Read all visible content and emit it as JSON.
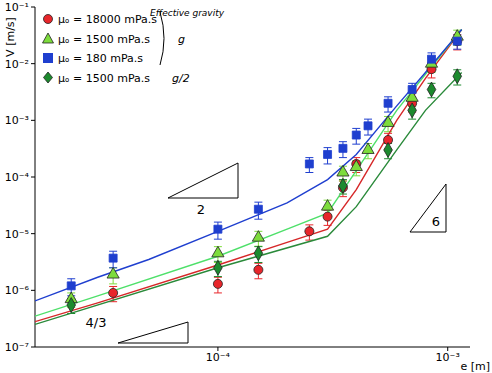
{
  "chart_data": {
    "type": "scatter",
    "x_label": "e [m]",
    "y_label": "V [m/s]",
    "log": true,
    "legend": "upper left",
    "legend_title": "Effective gravity",
    "slope_labels": [
      "2",
      "6",
      "4/3"
    ],
    "xlim": [
      1.6e-05,
      0.00125
    ],
    "xticks": [
      {
        "value": 0.0001,
        "label": "10⁻⁴"
      },
      {
        "value": 0.001,
        "label": "10⁻³"
      }
    ],
    "ylim": [
      1e-07,
      0.1
    ],
    "yticks": [
      {
        "value": 1e-07,
        "label": "10⁻⁷"
      },
      {
        "value": 1e-06,
        "label": "10⁻⁶"
      },
      {
        "value": 1e-05,
        "label": "10⁻⁵"
      },
      {
        "value": 0.0001,
        "label": "10⁻⁴"
      },
      {
        "value": 0.001,
        "label": "10⁻³"
      },
      {
        "value": 0.01,
        "label": "10⁻²"
      },
      {
        "value": 0.1,
        "label": "10⁻¹"
      }
    ],
    "x": [
      2.3e-05,
      3.5e-05,
      0.0001,
      0.00015,
      0.00025,
      0.0003,
      0.00035,
      0.0004,
      0.00045,
      0.00055,
      0.0007,
      0.00085,
      0.0011
    ],
    "series": [
      {
        "name": "μₒ = 18000 mPa.s",
        "gravity": "g",
        "color": "#e8262b",
        "marker": "circle",
        "values": [
          null,
          9e-07,
          1.3e-06,
          2.3e-06,
          1.1e-05,
          2e-05,
          6.5e-05,
          0.00017,
          null,
          0.00045,
          0.002,
          0.008,
          0.025
        ],
        "errors": [
          null,
          2.7e-07,
          4e-07,
          7e-07,
          3.3e-06,
          6e-06,
          2e-05,
          5e-05,
          null,
          0.00014,
          0.0006,
          0.0024,
          0.0075
        ],
        "fit": {
          "color": "#d62728",
          "x": [
            1.6e-05,
            3e-05,
            0.0001,
            0.0002,
            0.0003,
            0.0004,
            0.0006,
            0.0008,
            0.00115
          ],
          "values": [
            2.8e-07,
            6e-07,
            2.8e-06,
            7e-06,
            1.2e-05,
            6e-05,
            0.001,
            0.0055,
            0.04
          ]
        }
      },
      {
        "name": "μₒ = 1500 mPa.s",
        "gravity": "g",
        "color": "#7ddc3c",
        "marker": "triangle",
        "values": [
          7e-07,
          1.9e-06,
          4.5e-06,
          8.5e-06,
          null,
          3e-05,
          0.00012,
          0.00015,
          0.0003,
          0.0009,
          0.0025,
          0.01,
          0.03
        ],
        "errors": [
          2e-07,
          6e-07,
          1.4e-06,
          2.5e-06,
          null,
          9e-06,
          3.5e-05,
          4.5e-05,
          9e-05,
          0.00027,
          0.00075,
          0.003,
          0.009
        ],
        "fit": {
          "color": "#4ee06a",
          "x": [
            1.6e-05,
            3e-05,
            0.0001,
            0.0002,
            0.0003,
            0.0004,
            0.0006,
            0.0008,
            0.00115
          ],
          "values": [
            3.5e-07,
            8e-07,
            4e-06,
            1.2e-05,
            2.3e-05,
            0.00013,
            0.0015,
            0.0065,
            0.04
          ]
        }
      },
      {
        "name": "μₒ = 180 mPa.s",
        "gravity": "g",
        "color": "#1f3fcf",
        "marker": "square",
        "values": [
          1.2e-06,
          3.7e-06,
          1.2e-05,
          2.7e-05,
          0.00017,
          0.00025,
          0.00032,
          0.00055,
          0.0008,
          0.002,
          0.0035,
          0.012,
          0.025
        ],
        "errors": [
          4e-07,
          1.2e-06,
          4e-06,
          9e-06,
          5e-05,
          8e-05,
          0.0001,
          0.00017,
          0.00025,
          0.0006,
          0.001,
          0.0035,
          0.007
        ],
        "fit": {
          "color": "#1f3fcf",
          "x": [
            1.6e-05,
            3e-05,
            5e-05,
            0.0001,
            0.0002,
            0.0003,
            0.0004,
            0.0006,
            0.0008,
            0.00115
          ],
          "values": [
            6.5e-07,
            1.7e-06,
            3.5e-06,
            1.1e-05,
            3.5e-05,
            9e-05,
            0.00025,
            0.0018,
            0.007,
            0.04
          ]
        }
      },
      {
        "name": "μₒ = 1500 mPa.s",
        "gravity": "g/2",
        "color": "#1c8a2e",
        "marker": "diamond",
        "values": [
          5.5e-07,
          null,
          2.5e-06,
          4.5e-06,
          null,
          null,
          7e-05,
          null,
          null,
          0.0003,
          0.0015,
          0.0035,
          0.006
        ],
        "errors": [
          1.6e-07,
          null,
          7.5e-07,
          1.4e-06,
          null,
          null,
          2e-05,
          null,
          null,
          9e-05,
          0.00045,
          0.001,
          0.0018
        ],
        "fit": {
          "color": "#2a8a3a",
          "x": [
            1.6e-05,
            0.0001,
            0.0003,
            0.0004,
            0.0006,
            0.0008,
            0.00115
          ],
          "values": [
            2.5e-07,
            2.5e-06,
            9e-06,
            3e-05,
            0.0003,
            0.0015,
            0.007
          ]
        }
      }
    ]
  }
}
